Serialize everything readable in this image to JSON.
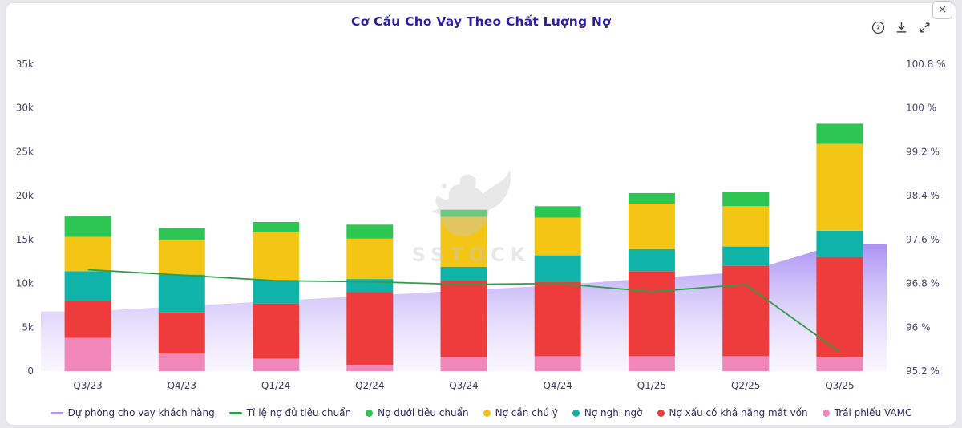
{
  "window": {
    "close": "×"
  },
  "header": {
    "title": "Cơ Cấu Cho Vay Theo Chất Lượng Nợ",
    "icons": [
      "help-icon",
      "download-icon",
      "expand-icon"
    ]
  },
  "watermark": {
    "text": "SSTOCK"
  },
  "chart_data": {
    "type": "bar",
    "subtype": "stacked-bars + area + line (dual axis)",
    "title": "Cơ Cấu Cho Vay Theo Chất Lượng Nợ",
    "categories": [
      "Q3/23",
      "Q4/23",
      "Q1/24",
      "Q2/24",
      "Q3/24",
      "Q4/24",
      "Q1/25",
      "Q2/25",
      "Q3/25"
    ],
    "left_axis": {
      "min": 0,
      "max": 35000,
      "tick_values": [
        0,
        5000,
        10000,
        15000,
        20000,
        25000,
        30000,
        35000
      ],
      "ticks": [
        "0",
        "5k",
        "10k",
        "15k",
        "20k",
        "25k",
        "30k",
        "35k"
      ]
    },
    "right_axis": {
      "min": 95.2,
      "max": 100.8,
      "tick_values": [
        95.2,
        96,
        96.8,
        97.6,
        98.4,
        99.2,
        100,
        100.8
      ],
      "ticks": [
        "95.2 %",
        "96 %",
        "96.8 %",
        "97.6 %",
        "98.4 %",
        "99.2 %",
        "100 %",
        "100.8 %"
      ]
    },
    "bar_series": [
      {
        "name": "Trái phiếu VAMC",
        "color": "#f287ba",
        "values": [
          3800,
          2000,
          1400,
          700,
          1600,
          1700,
          1700,
          1700,
          1600
        ]
      },
      {
        "name": "Nợ xấu có khả năng mất vốn",
        "color": "#ee3b3b",
        "values": [
          4200,
          4700,
          6300,
          8300,
          8700,
          8500,
          9700,
          10300,
          11400
        ]
      },
      {
        "name": "Nợ nghi ngờ",
        "color": "#10b3a8",
        "values": [
          3400,
          4300,
          2700,
          1500,
          1600,
          3000,
          2500,
          2200,
          3000
        ]
      },
      {
        "name": "Nợ cần chú ý",
        "color": "#f3c515",
        "values": [
          3900,
          3900,
          5500,
          4600,
          5700,
          4300,
          5200,
          4600,
          9900
        ]
      },
      {
        "name": "Nợ dưới tiêu chuẩn",
        "color": "#2dc653",
        "values": [
          2400,
          1400,
          1100,
          1600,
          800,
          1300,
          1200,
          1600,
          2300
        ]
      }
    ],
    "area_series": {
      "name": "Dự phòng cho vay khách hàng",
      "color": "#b29bf7",
      "values": [
        6800,
        7400,
        8000,
        8600,
        9200,
        9800,
        10600,
        11300,
        14500
      ]
    },
    "line_series": {
      "name": "Tỉ lệ nợ đủ tiêu chuẩn",
      "color": "#2f9e49",
      "axis": "right",
      "values": [
        97.05,
        96.95,
        96.85,
        96.83,
        96.78,
        96.8,
        96.65,
        96.78,
        95.55
      ]
    },
    "grid": false,
    "legend_position": "bottom"
  },
  "legend": [
    {
      "label": "Dự phòng cho vay khách hàng",
      "marker": "line",
      "color": "#b29bf7"
    },
    {
      "label": "Tỉ lệ nợ đủ tiêu chuẩn",
      "marker": "line",
      "color": "#2f9e49"
    },
    {
      "label": "Nợ dưới tiêu chuẩn",
      "marker": "dot",
      "color": "#2dc653"
    },
    {
      "label": "Nợ cần chú ý",
      "marker": "dot",
      "color": "#f3c515"
    },
    {
      "label": "Nợ nghi ngờ",
      "marker": "dot",
      "color": "#10b3a8"
    },
    {
      "label": "Nợ xấu có khả năng mất vốn",
      "marker": "dot",
      "color": "#ee3b3b"
    },
    {
      "label": "Trái phiếu VAMC",
      "marker": "dot",
      "color": "#f287ba"
    }
  ]
}
